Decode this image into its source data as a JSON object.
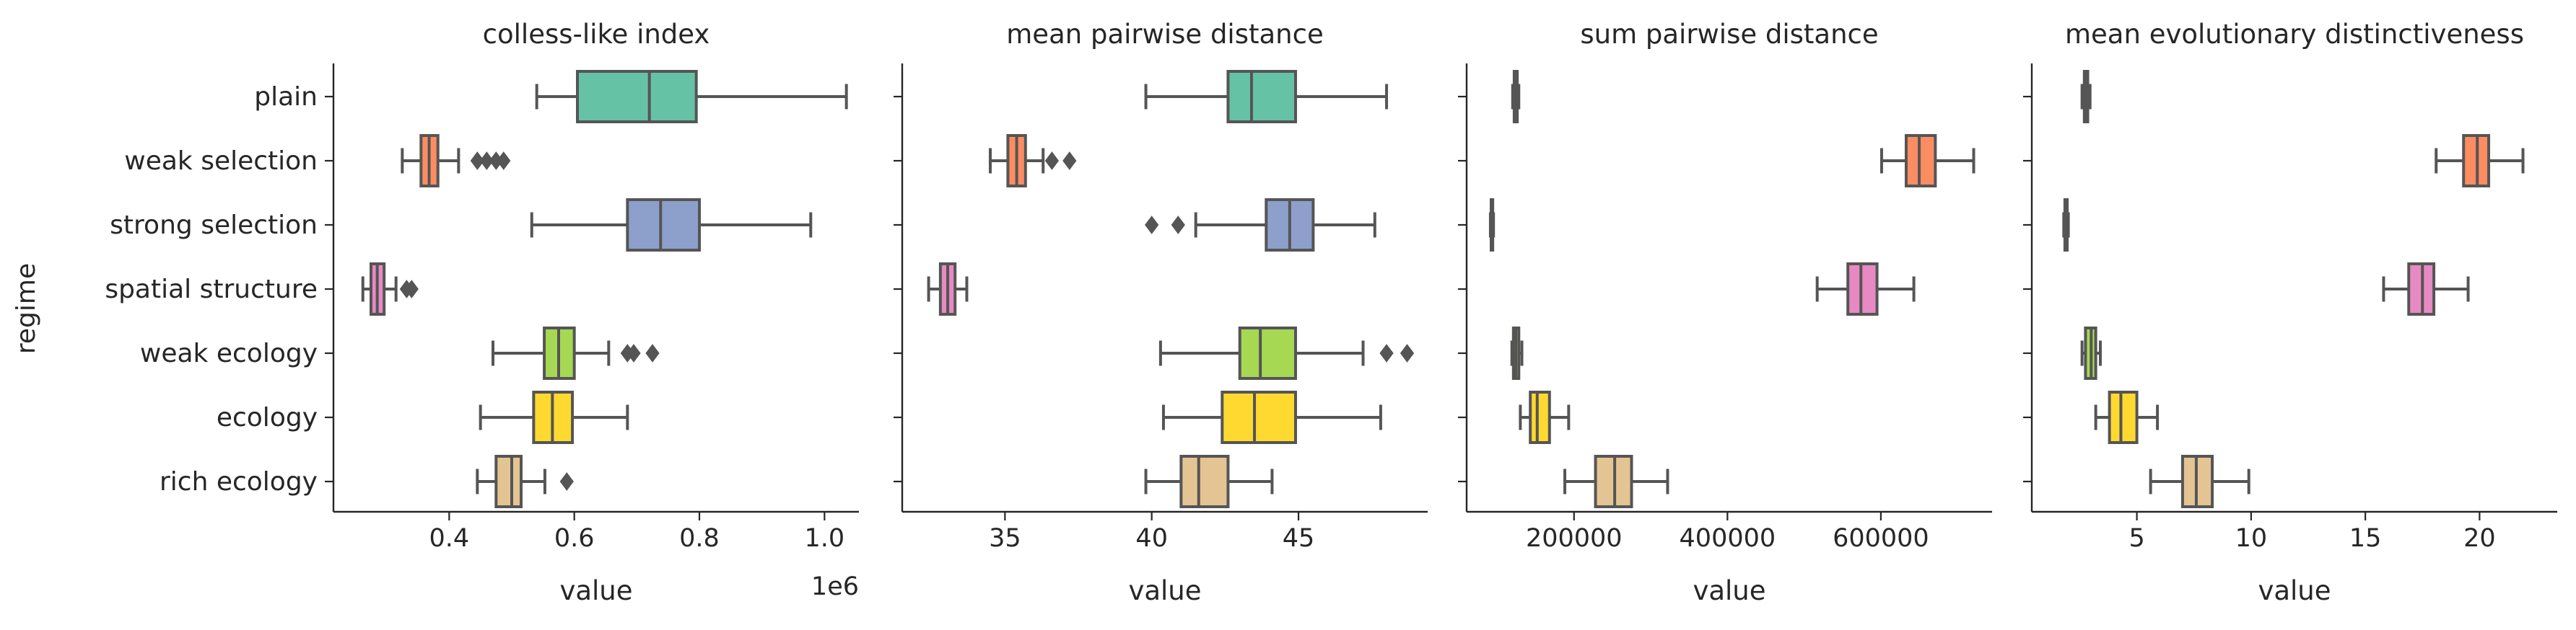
{
  "figure": {
    "ylabel": "regime",
    "categories": [
      "plain",
      "weak selection",
      "strong selection",
      "spatial structure",
      "weak ecology",
      "ecology",
      "rich ecology"
    ],
    "palette": [
      "#66c2a5",
      "#fc8d62",
      "#8da0cb",
      "#e78ac3",
      "#a6d854",
      "#ffd92f",
      "#e5c494"
    ],
    "line_color": "#555555"
  },
  "chart_data": [
    {
      "type": "box",
      "title": "colless-like index",
      "xlabel": "value",
      "offset_text": "1e6",
      "xlim": [
        0.215,
        1.055
      ],
      "ticks": [
        0.4,
        0.6,
        0.8,
        1.0
      ],
      "tick_labels": [
        "0.4",
        "0.6",
        "0.8",
        "1.0"
      ],
      "boxes": [
        {
          "category": "plain",
          "whisker_low": 0.54,
          "q1": 0.605,
          "median": 0.72,
          "q3": 0.795,
          "whisker_high": 1.035,
          "outliers": []
        },
        {
          "category": "weak selection",
          "whisker_low": 0.325,
          "q1": 0.355,
          "median": 0.368,
          "q3": 0.382,
          "whisker_high": 0.415,
          "outliers": [
            0.445,
            0.46,
            0.475,
            0.487
          ]
        },
        {
          "category": "strong selection",
          "whisker_low": 0.532,
          "q1": 0.685,
          "median": 0.738,
          "q3": 0.8,
          "whisker_high": 0.978,
          "outliers": []
        },
        {
          "category": "spatial structure",
          "whisker_low": 0.262,
          "q1": 0.275,
          "median": 0.285,
          "q3": 0.296,
          "whisker_high": 0.315,
          "outliers": [
            0.332,
            0.34
          ]
        },
        {
          "category": "weak ecology",
          "whisker_low": 0.47,
          "q1": 0.552,
          "median": 0.575,
          "q3": 0.6,
          "whisker_high": 0.655,
          "outliers": [
            0.685,
            0.695,
            0.725
          ]
        },
        {
          "category": "ecology",
          "whisker_low": 0.45,
          "q1": 0.535,
          "median": 0.565,
          "q3": 0.597,
          "whisker_high": 0.685,
          "outliers": []
        },
        {
          "category": "rich ecology",
          "whisker_low": 0.445,
          "q1": 0.475,
          "median": 0.5,
          "q3": 0.515,
          "whisker_high": 0.553,
          "outliers": [
            0.588
          ]
        }
      ]
    },
    {
      "type": "box",
      "title": "mean pairwise distance",
      "xlabel": "value",
      "xlim": [
        31.5,
        49.4
      ],
      "ticks": [
        35,
        40,
        45
      ],
      "tick_labels": [
        "35",
        "40",
        "45"
      ],
      "boxes": [
        {
          "category": "plain",
          "whisker_low": 39.8,
          "q1": 42.6,
          "median": 43.4,
          "q3": 44.9,
          "whisker_high": 48.0,
          "outliers": []
        },
        {
          "category": "weak selection",
          "whisker_low": 34.5,
          "q1": 35.1,
          "median": 35.4,
          "q3": 35.7,
          "whisker_high": 36.3,
          "outliers": [
            36.6,
            37.2
          ]
        },
        {
          "category": "strong selection",
          "whisker_low": 41.5,
          "q1": 43.9,
          "median": 44.7,
          "q3": 45.5,
          "whisker_high": 47.6,
          "outliers": [
            40.0,
            40.9
          ]
        },
        {
          "category": "spatial structure",
          "whisker_low": 32.4,
          "q1": 32.8,
          "median": 33.05,
          "q3": 33.3,
          "whisker_high": 33.7,
          "outliers": []
        },
        {
          "category": "weak ecology",
          "whisker_low": 40.3,
          "q1": 43.0,
          "median": 43.7,
          "q3": 44.9,
          "whisker_high": 47.2,
          "outliers": [
            48.0,
            48.7
          ]
        },
        {
          "category": "ecology",
          "whisker_low": 40.4,
          "q1": 42.4,
          "median": 43.5,
          "q3": 44.9,
          "whisker_high": 47.8,
          "outliers": []
        },
        {
          "category": "rich ecology",
          "whisker_low": 39.8,
          "q1": 41.0,
          "median": 41.6,
          "q3": 42.6,
          "whisker_high": 44.1,
          "outliers": []
        }
      ]
    },
    {
      "type": "box",
      "title": "sum pairwise distance",
      "xlabel": "value",
      "xlim": [
        60000,
        745000
      ],
      "ticks": [
        200000,
        400000,
        600000
      ],
      "tick_labels": [
        "200000",
        "400000",
        "600000"
      ],
      "boxes": [
        {
          "category": "plain",
          "whisker_low": 120000,
          "q1": 122000,
          "median": 124000,
          "q3": 126000,
          "whisker_high": 128000,
          "outliers": []
        },
        {
          "category": "weak selection",
          "whisker_low": 601000,
          "q1": 633000,
          "median": 650000,
          "q3": 671000,
          "whisker_high": 721000,
          "outliers": []
        },
        {
          "category": "strong selection",
          "whisker_low": 91000,
          "q1": 92000,
          "median": 93000,
          "q3": 94000,
          "whisker_high": 95000,
          "outliers": []
        },
        {
          "category": "spatial structure",
          "whisker_low": 517000,
          "q1": 557000,
          "median": 574000,
          "q3": 595000,
          "whisker_high": 643000,
          "outliers": []
        },
        {
          "category": "weak ecology",
          "whisker_low": 119000,
          "q1": 121000,
          "median": 124000,
          "q3": 128000,
          "whisker_high": 132000,
          "outliers": []
        },
        {
          "category": "ecology",
          "whisker_low": 130000,
          "q1": 143000,
          "median": 152000,
          "q3": 168000,
          "whisker_high": 193000,
          "outliers": []
        },
        {
          "category": "rich ecology",
          "whisker_low": 188000,
          "q1": 228000,
          "median": 253000,
          "q3": 275000,
          "whisker_high": 322000,
          "outliers": []
        }
      ]
    },
    {
      "type": "box",
      "title": "mean evolutionary distinctiveness",
      "xlabel": "value",
      "xlim": [
        0.4,
        23.4
      ],
      "ticks": [
        5,
        10,
        15,
        20
      ],
      "tick_labels": [
        "5",
        "10",
        "15",
        "20"
      ],
      "boxes": [
        {
          "category": "plain",
          "whisker_low": 2.6,
          "q1": 2.7,
          "median": 2.8,
          "q3": 2.85,
          "whisker_high": 2.95,
          "outliers": []
        },
        {
          "category": "weak selection",
          "whisker_low": 18.1,
          "q1": 19.3,
          "median": 19.9,
          "q3": 20.4,
          "whisker_high": 21.9,
          "outliers": []
        },
        {
          "category": "strong selection",
          "whisker_low": 1.8,
          "q1": 1.85,
          "median": 1.9,
          "q3": 1.95,
          "whisker_high": 2.0,
          "outliers": []
        },
        {
          "category": "spatial structure",
          "whisker_low": 15.8,
          "q1": 16.9,
          "median": 17.5,
          "q3": 18.0,
          "whisker_high": 19.5,
          "outliers": []
        },
        {
          "category": "weak ecology",
          "whisker_low": 2.6,
          "q1": 2.75,
          "median": 3.0,
          "q3": 3.2,
          "whisker_high": 3.4,
          "outliers": []
        },
        {
          "category": "ecology",
          "whisker_low": 3.2,
          "q1": 3.8,
          "median": 4.3,
          "q3": 5.0,
          "whisker_high": 5.9,
          "outliers": []
        },
        {
          "category": "rich ecology",
          "whisker_low": 5.6,
          "q1": 7.0,
          "median": 7.6,
          "q3": 8.3,
          "whisker_high": 9.9,
          "outliers": []
        }
      ]
    }
  ]
}
